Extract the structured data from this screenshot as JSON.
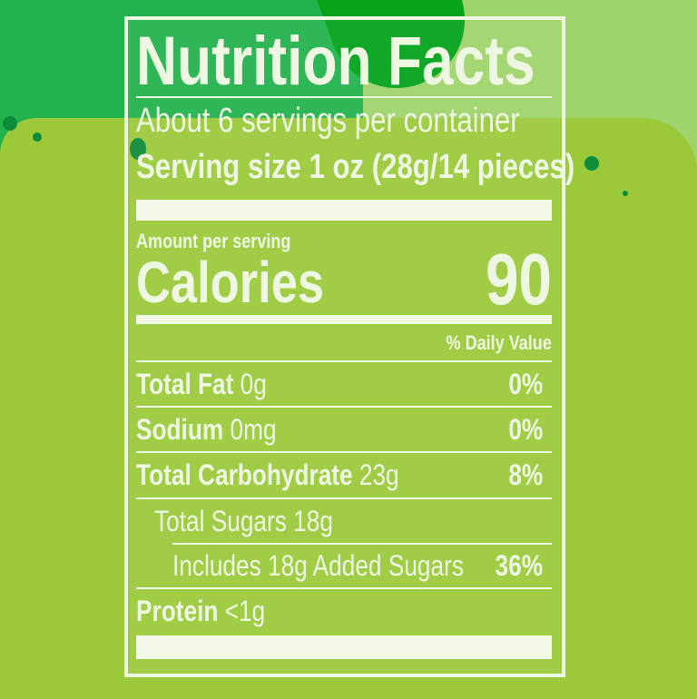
{
  "label": {
    "title": "Nutrition Facts",
    "servings_per_container": "About 6 servings per container",
    "serving_size": "Serving size 1 oz (28g/14 pieces)",
    "amount_per_serving": "Amount per serving",
    "calories_label": "Calories",
    "calories_value": "90",
    "daily_value_header": "% Daily Value",
    "rows": [
      {
        "name": "Total Fat",
        "amount": "0g",
        "dv": "0%"
      },
      {
        "name": "Sodium",
        "amount": "0mg",
        "dv": "0%"
      },
      {
        "name": "Total Carbohydrate",
        "amount": "23g",
        "dv": "8%"
      },
      {
        "name": "Total Sugars 18g",
        "amount": "",
        "dv": ""
      },
      {
        "name": "Includes 18g Added Sugars",
        "amount": "",
        "dv": "36%"
      },
      {
        "name": "Protein",
        "amount": "<1g",
        "dv": ""
      }
    ]
  },
  "colors": {
    "background": "#9cc93a",
    "dark_green": "#22b24c",
    "light_green": "#9fd46c",
    "text": "#eef7e2"
  }
}
